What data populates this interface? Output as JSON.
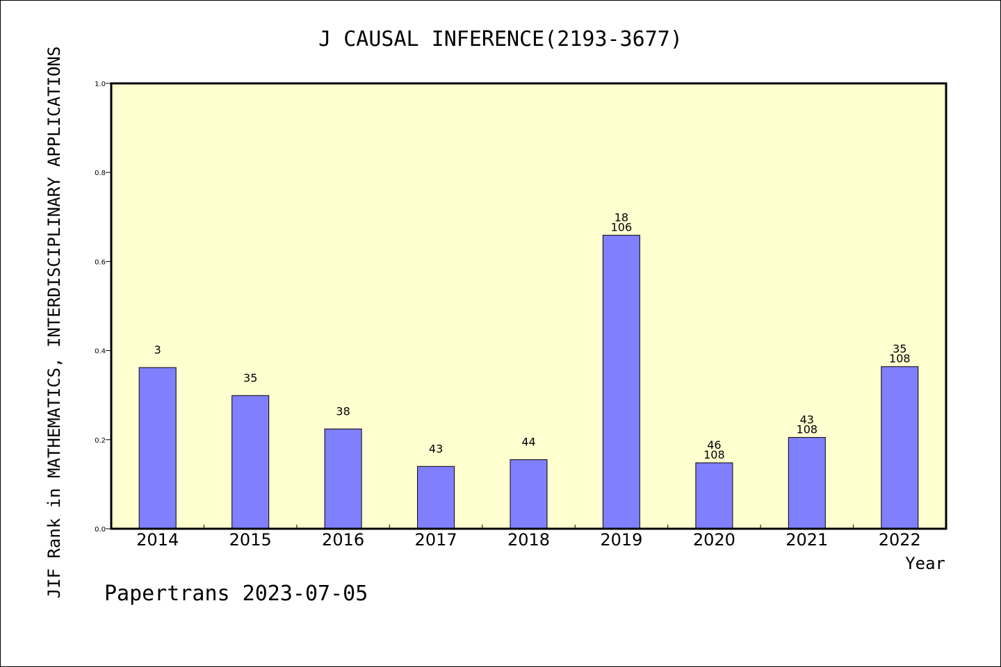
{
  "chart_data": {
    "type": "bar",
    "title": "J CAUSAL INFERENCE(2193-3677)",
    "xlabel": "Year",
    "ylabel": "JIF Rank in MATHEMATICS,  INTERDISCIPLINARY APPLICATIONS",
    "ylim": [
      0,
      1.0
    ],
    "yticks": [
      "0.0",
      "0.2",
      "0.4",
      "0.6",
      "0.8",
      "1.0"
    ],
    "categories": [
      "2014",
      "2015",
      "2016",
      "2017",
      "2018",
      "2019",
      "2020",
      "2021",
      "2022"
    ],
    "values": [
      0.362,
      0.299,
      0.224,
      0.14,
      0.155,
      0.659,
      0.148,
      0.205,
      0.364
    ],
    "bar_labels": [
      [
        "3"
      ],
      [
        "35"
      ],
      [
        "38"
      ],
      [
        "43"
      ],
      [
        "44"
      ],
      [
        "18",
        "106"
      ],
      [
        "46",
        "108"
      ],
      [
        "43",
        "108"
      ],
      [
        "35",
        "108"
      ]
    ],
    "grid": false,
    "colors": {
      "bar_fill": "#8080ff",
      "plot_background": "#ffffd0",
      "axis": "#000000"
    }
  },
  "footer": {
    "text": "Papertrans 2023-07-05"
  }
}
